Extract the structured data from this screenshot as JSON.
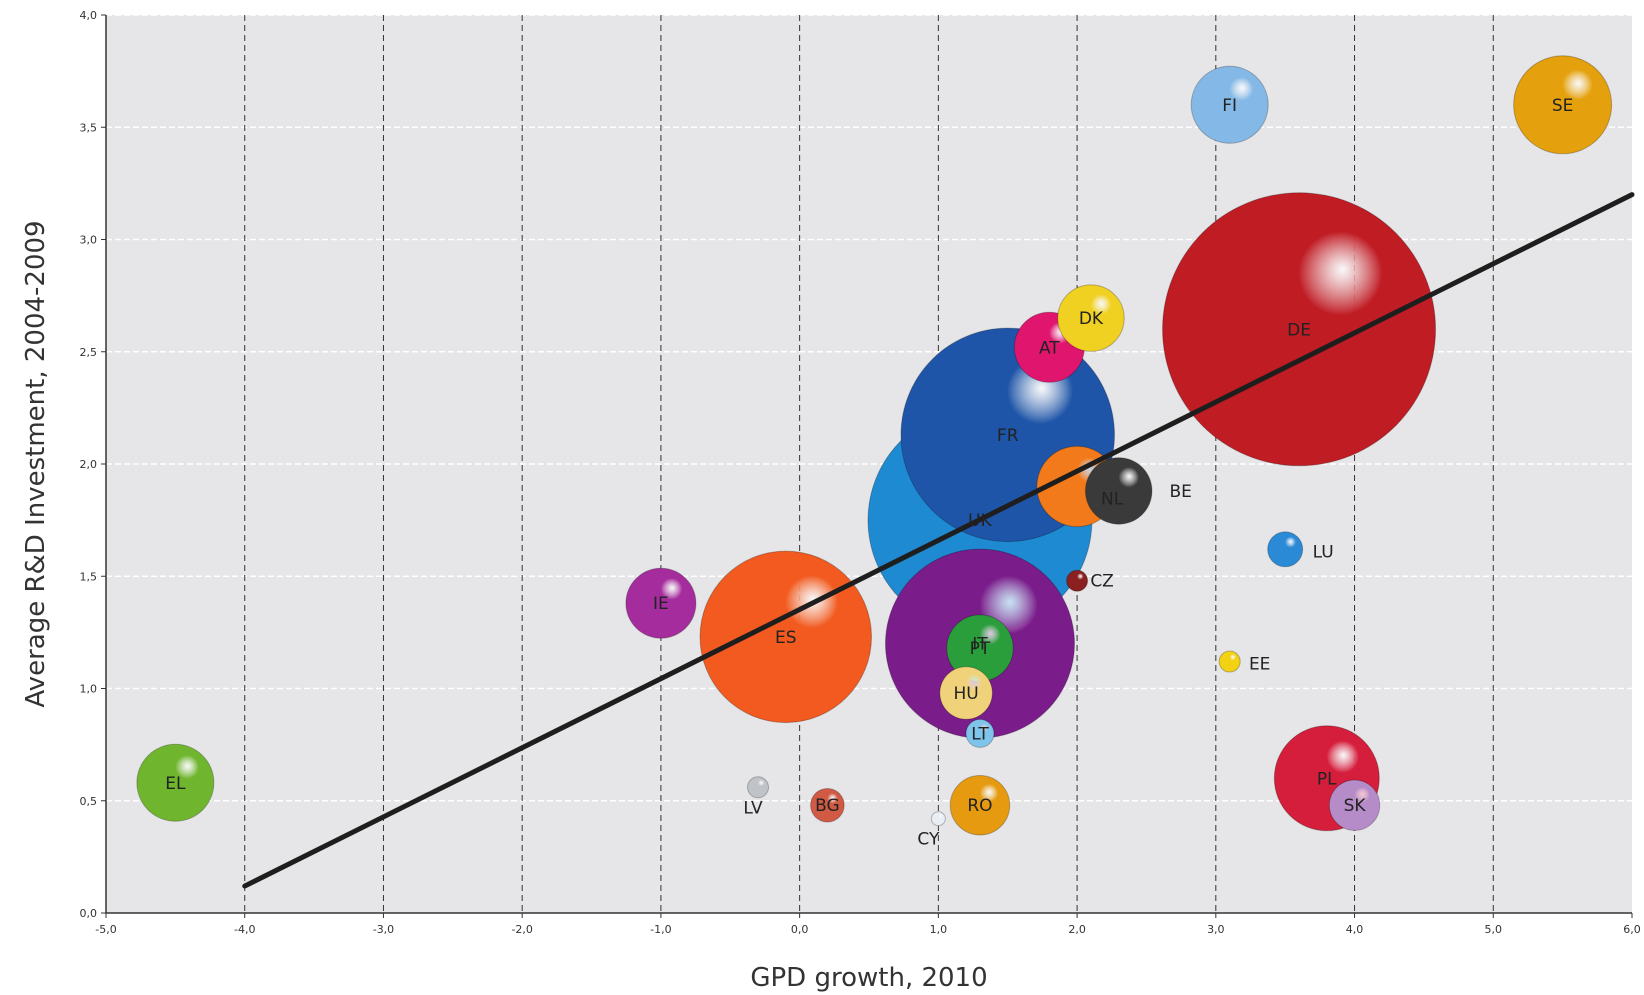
{
  "chart_data": {
    "type": "scatter",
    "title": "",
    "xlabel": "GPD growth, 2010",
    "ylabel": "Average R&D Investment, 2004-2009",
    "xlim": [
      -5,
      6
    ],
    "ylim": [
      0,
      4
    ],
    "x_ticks": [
      "-5,0",
      "-4,0",
      "-3,0",
      "-2,0",
      "-1,0",
      "0,0",
      "1,0",
      "2,0",
      "3,0",
      "4,0",
      "5,0",
      "6,0"
    ],
    "y_ticks": [
      "0,0",
      "0,5",
      "1,0",
      "1,5",
      "2,0",
      "2,5",
      "3,0",
      "3,5",
      "4,0"
    ],
    "grid": true,
    "trend_line": {
      "x": [
        -4.0,
        6.0
      ],
      "y": [
        0.12,
        3.2
      ]
    },
    "points": [
      {
        "label": "EL",
        "x": -4.5,
        "y": 0.58,
        "size": 1.1,
        "color": "#6fb52e"
      },
      {
        "label": "IE",
        "x": -1.0,
        "y": 1.38,
        "size": 1.0,
        "color": "#a52c9c"
      },
      {
        "label": "ES",
        "x": -0.1,
        "y": 1.23,
        "size": 2.45,
        "color": "#f25a1f"
      },
      {
        "label": "LV",
        "x": -0.3,
        "y": 0.56,
        "size": 0.3,
        "color": "#c0c4c8"
      },
      {
        "label": "BG",
        "x": 0.2,
        "y": 0.48,
        "size": 0.48,
        "color": "#d05a44"
      },
      {
        "label": "CY",
        "x": 1.0,
        "y": 0.42,
        "size": 0.2,
        "color": "#e8eef4"
      },
      {
        "label": "RO",
        "x": 1.3,
        "y": 0.48,
        "size": 0.85,
        "color": "#e59a10"
      },
      {
        "label": "IT",
        "x": 1.3,
        "y": 1.2,
        "size": 2.7,
        "color": "#7a1c8a"
      },
      {
        "label": "PT",
        "x": 1.3,
        "y": 1.18,
        "size": 0.95,
        "color": "#2b9e3c"
      },
      {
        "label": "HU",
        "x": 1.2,
        "y": 0.98,
        "size": 0.75,
        "color": "#f0d27a"
      },
      {
        "label": "LT",
        "x": 1.3,
        "y": 0.8,
        "size": 0.4,
        "color": "#7fc4ea"
      },
      {
        "label": "FR",
        "x": 1.5,
        "y": 2.13,
        "size": 3.05,
        "color": "#1f55a8"
      },
      {
        "label": "UK",
        "x": 1.3,
        "y": 1.75,
        "size": 3.2,
        "color": "#1e8ad2"
      },
      {
        "label": "NL",
        "x": 2.0,
        "y": 1.9,
        "size": 1.15,
        "color": "#f27a1a"
      },
      {
        "label": "BE",
        "x": 2.3,
        "y": 1.88,
        "size": 0.95,
        "color": "#3a3a3a"
      },
      {
        "label": "CZ",
        "x": 2.0,
        "y": 1.48,
        "size": 0.3,
        "color": "#8a2020"
      },
      {
        "label": "AT",
        "x": 1.8,
        "y": 2.52,
        "size": 1.0,
        "color": "#e0156e"
      },
      {
        "label": "DK",
        "x": 2.1,
        "y": 2.65,
        "size": 0.95,
        "color": "#f0d020"
      },
      {
        "label": "DE",
        "x": 3.6,
        "y": 2.6,
        "size": 3.9,
        "color": "#c01c24"
      },
      {
        "label": "FI",
        "x": 3.1,
        "y": 3.6,
        "size": 1.1,
        "color": "#84b8e6"
      },
      {
        "label": "SE",
        "x": 5.5,
        "y": 3.6,
        "size": 1.4,
        "color": "#e5a10d"
      },
      {
        "label": "LU",
        "x": 3.5,
        "y": 1.62,
        "size": 0.5,
        "color": "#2a8ad6"
      },
      {
        "label": "EE",
        "x": 3.1,
        "y": 1.12,
        "size": 0.3,
        "color": "#f3d213"
      },
      {
        "label": "PL",
        "x": 3.8,
        "y": 0.6,
        "size": 1.5,
        "color": "#d51e3c"
      },
      {
        "label": "SK",
        "x": 4.0,
        "y": 0.48,
        "size": 0.72,
        "color": "#b58bc8"
      }
    ]
  }
}
